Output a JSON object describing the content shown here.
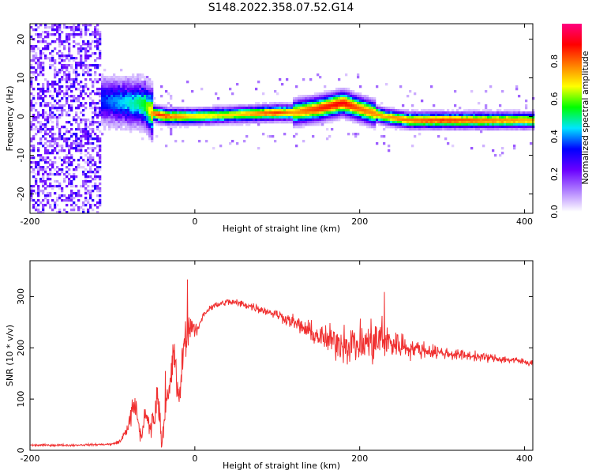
{
  "chart_data": [
    {
      "type": "heatmap",
      "title": "S148.2022.358.07.52.G14",
      "xlabel": "Height of straight line (km)",
      "ylabel": "Frequency (Hz)",
      "xlim": [
        -200,
        410
      ],
      "ylim": [
        -25,
        24
      ],
      "x_ticks": [
        "-200",
        "0",
        "200",
        "400"
      ],
      "y_ticks": [
        "-20",
        "-10",
        "0",
        "10",
        "20"
      ],
      "colorbar": {
        "label": "Normalized spectral amplitude",
        "range": [
          0,
          1
        ],
        "ticks": [
          "0.0",
          "0.2",
          "0.4",
          "0.6",
          "0.8"
        ],
        "colors": [
          "#ffffff",
          "#b080ff",
          "#6a00ff",
          "#0000ff",
          "#00e5ff",
          "#00ff00",
          "#ffff00",
          "#ff8000",
          "#ff0000",
          "#ff0080"
        ]
      },
      "ridge": {
        "x": [
          -115,
          -100,
          -85,
          -70,
          -60,
          -52,
          -45,
          -30,
          0,
          50,
          100,
          120,
          150,
          180,
          200,
          230,
          260,
          300,
          350,
          410
        ],
        "frequency": [
          4,
          4,
          3.5,
          3.5,
          3,
          1,
          0.5,
          0,
          0,
          0.5,
          1,
          1,
          2,
          3.5,
          2,
          0,
          -1,
          -1,
          -1,
          -1
        ],
        "peak_amplitude": [
          0.35,
          0.4,
          0.45,
          0.5,
          0.55,
          0.75,
          0.85,
          0.8,
          0.7,
          0.7,
          0.85,
          0.75,
          0.85,
          0.9,
          0.8,
          0.75,
          0.8,
          0.85,
          0.8,
          0.75
        ]
      }
    },
    {
      "type": "line",
      "xlabel": "Height of straight line (km)",
      "ylabel": "SNR (10 * v/v)",
      "xlim": [
        -200,
        410
      ],
      "ylim": [
        0,
        370
      ],
      "x_ticks": [
        "-200",
        "0",
        "200",
        "400"
      ],
      "y_ticks": [
        "0",
        "100",
        "200",
        "300"
      ],
      "color": "#f03030",
      "series": [
        {
          "x": [
            -200,
            -150,
            -100,
            -90,
            -80,
            -75,
            -70,
            -65,
            -60,
            -55,
            -50,
            -45,
            -40,
            -35,
            -30,
            -25,
            -20,
            -15,
            -10,
            -5,
            0,
            5,
            10,
            20,
            30,
            40,
            60,
            80,
            100,
            120,
            140,
            160,
            180,
            200,
            220,
            240,
            260,
            280,
            300,
            330,
            360,
            390,
            410
          ],
          "y": [
            10,
            10,
            12,
            18,
            50,
            85,
            70,
            20,
            80,
            40,
            60,
            110,
            15,
            100,
            120,
            200,
            80,
            180,
            220,
            250,
            230,
            240,
            265,
            280,
            285,
            290,
            285,
            275,
            265,
            250,
            230,
            215,
            210,
            205,
            215,
            210,
            200,
            195,
            190,
            185,
            180,
            175,
            170
          ],
          "noise": [
            3,
            3,
            3,
            5,
            20,
            40,
            45,
            20,
            40,
            35,
            40,
            50,
            20,
            50,
            60,
            80,
            70,
            60,
            45,
            35,
            20,
            12,
            10,
            10,
            10,
            10,
            12,
            12,
            14,
            20,
            30,
            40,
            55,
            65,
            70,
            45,
            30,
            22,
            18,
            14,
            12,
            10,
            10
          ]
        }
      ]
    }
  ]
}
